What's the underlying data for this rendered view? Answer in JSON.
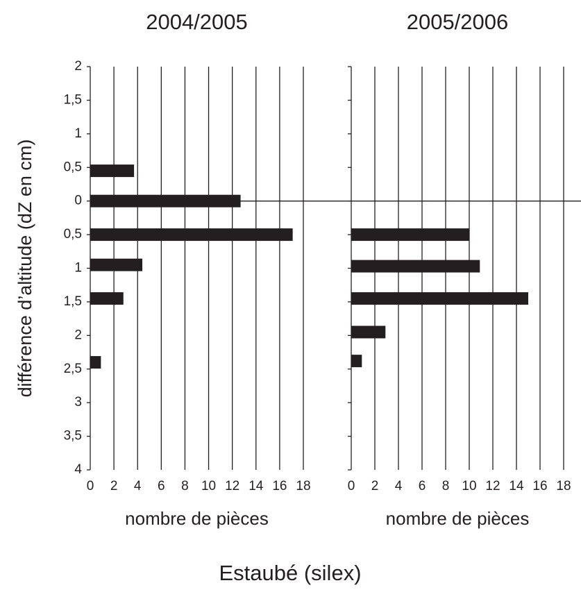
{
  "figure_title": "Estaubé (silex)",
  "chart_data": [
    {
      "type": "bar",
      "orientation": "horizontal",
      "title": "2004/2005",
      "xlabel": "nombre de pièces",
      "ylabel": "différence d’altitude (dZ en cm)",
      "color": "#231f20",
      "grid": true,
      "y": [
        0.45,
        0,
        -0.5,
        -0.95,
        -1.45,
        -2.4
      ],
      "values": [
        3.7,
        12.7,
        17.1,
        4.4,
        2.8,
        0.9
      ],
      "xlim": [
        0,
        18
      ],
      "xticks": [
        0,
        2,
        4,
        6,
        8,
        10,
        12,
        14,
        16,
        18
      ],
      "ylim": [
        -4,
        2
      ],
      "yticks": [
        2,
        {
          "value": 1.5,
          "label": "1,5"
        },
        1,
        {
          "value": 0.5,
          "label": "0,5"
        },
        0,
        {
          "value": -0.5,
          "label": "0,5"
        },
        {
          "value": -1,
          "label": "1"
        },
        {
          "value": -1.5,
          "label": "1,5"
        },
        {
          "value": -2,
          "label": "2"
        },
        {
          "value": -2.5,
          "label": "2,5"
        },
        {
          "value": -3,
          "label": "3"
        },
        {
          "value": -3.5,
          "label": "3,5"
        },
        {
          "value": -4,
          "label": "4"
        }
      ]
    },
    {
      "type": "bar",
      "orientation": "horizontal",
      "title": "2005/2006",
      "xlabel": "nombre de pièces",
      "color": "#231f20",
      "grid": true,
      "y": [
        -0.5,
        -0.97,
        -1.45,
        -1.95,
        -2.38
      ],
      "values": [
        10,
        10.9,
        15,
        2.9,
        0.9
      ],
      "xlim": [
        0,
        18
      ],
      "xticks": [
        0,
        2,
        4,
        6,
        8,
        10,
        12,
        14,
        16,
        18
      ],
      "ylim": [
        -4,
        2
      ]
    }
  ]
}
